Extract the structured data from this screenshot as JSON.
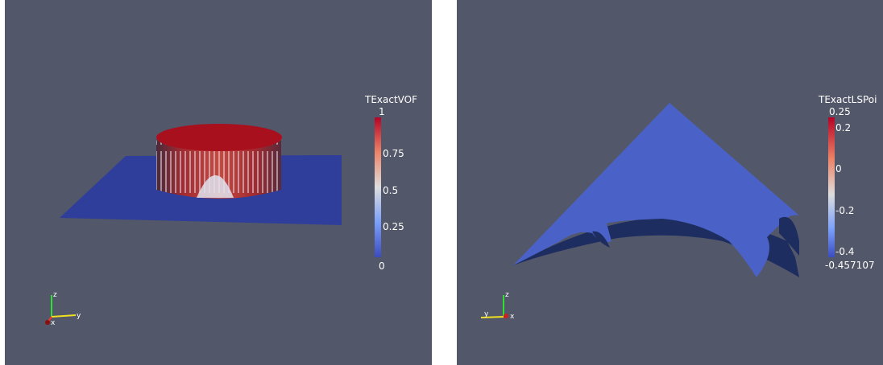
{
  "left_view": {
    "scalar_bar": {
      "title": "TExactVOF",
      "max_label": "1",
      "labels": [
        "0.75",
        "0.5",
        "0.25"
      ],
      "min_label": "0"
    },
    "axes": {
      "x": "x",
      "y": "y",
      "z": "z"
    }
  },
  "right_view": {
    "scalar_bar": {
      "title": "TExactLSPoi",
      "max_label": "0.25",
      "labels": [
        "0.2",
        "0",
        "-0.2",
        "-0.4"
      ],
      "min_label": "-0.457107"
    },
    "axes": {
      "x": "x",
      "y": "y",
      "z": "z"
    }
  },
  "colors": {
    "background": "#525769",
    "colormap_high": "#b40426",
    "colormap_mid": "#dddddd",
    "colormap_low": "#3b4cc0",
    "plane": "#2e3e9a",
    "axis_x": "#ff3030",
    "axis_y": "#f0e020",
    "axis_z": "#30e030"
  }
}
